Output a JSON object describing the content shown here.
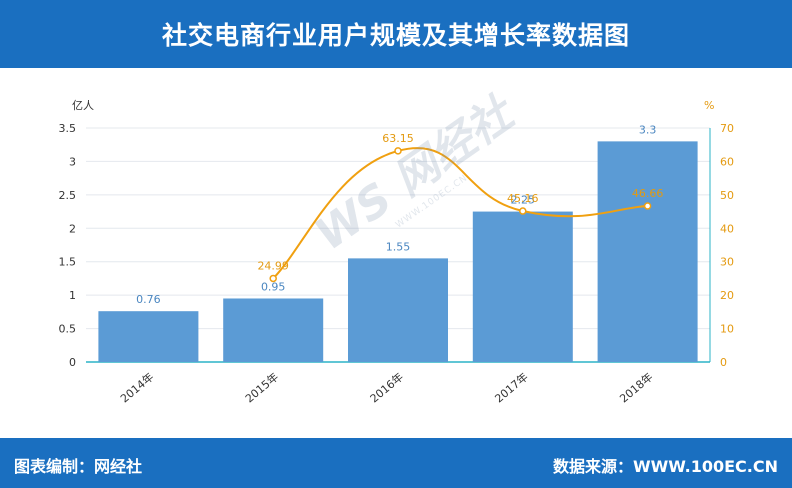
{
  "header": {
    "title": "社交电商行业用户规模及其增长率数据图"
  },
  "footer": {
    "left_text": "图表编制：网经社",
    "right_text": "数据来源：WWW.100EC.CN"
  },
  "watermark": {
    "main": "WS 网经社",
    "sub": "WWW.100EC.CN"
  },
  "chart_data": {
    "type": "bar",
    "categories": [
      "2014年",
      "2015年",
      "2016年",
      "2017年",
      "2018年"
    ],
    "left_axis": {
      "unit": "亿人",
      "ylim": [
        0,
        3.5
      ],
      "ticks": [
        "0",
        "0.5",
        "1",
        "1.5",
        "2",
        "2.5",
        "3",
        "3.5"
      ]
    },
    "right_axis": {
      "unit": "%",
      "ylim": [
        0,
        70
      ],
      "ticks": [
        "0",
        "10",
        "20",
        "30",
        "40",
        "50",
        "60",
        "70"
      ]
    },
    "series": [
      {
        "type": "bar",
        "axis": "left",
        "values": [
          0.76,
          0.95,
          1.55,
          2.25,
          3.3
        ],
        "labels": [
          "0.76",
          "0.95",
          "1.55",
          "2.25",
          "3.3"
        ],
        "color": "#5b9bd5",
        "label_color": "#4a86c0"
      },
      {
        "type": "line",
        "axis": "right",
        "values": [
          null,
          24.99,
          63.15,
          45.16,
          46.66
        ],
        "labels": [
          "",
          "24.99",
          "63.15",
          "45.16",
          "46.66"
        ],
        "color": "#f0a010",
        "label_color": "#e49a10"
      }
    ],
    "grid": true
  }
}
